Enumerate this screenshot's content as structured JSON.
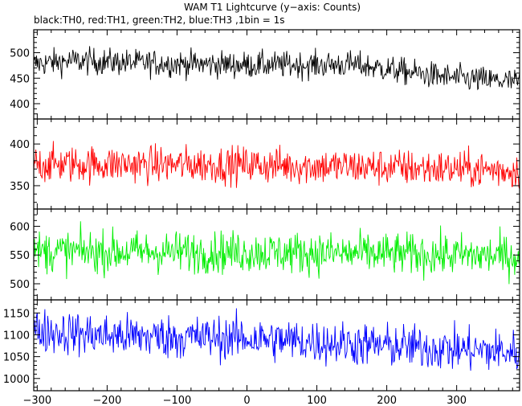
{
  "chart_data": {
    "type": "line",
    "title": "WAM T1 Lightcurve (y−axis: Counts)",
    "subtitle": "black:TH0, red:TH1, green:TH2, blue:TH3 ,1bin = 1s",
    "xlim": [
      -305,
      390
    ],
    "x_ticks": [
      -300,
      -200,
      -100,
      0,
      100,
      200,
      300
    ],
    "x_tick_labels": [
      "−300",
      "−200",
      "−100",
      "0",
      "100",
      "200",
      "300"
    ],
    "bin_seconds": 1,
    "grid": false,
    "legend": "none",
    "panels": [
      {
        "id": "TH0",
        "color": "#000000",
        "ylim": [
          370,
          545
        ],
        "y_ticks": [
          400,
          450,
          500
        ],
        "y_tick_labels": [
          "400",
          "450",
          "500"
        ],
        "trend": [
          [
            -305,
            478
          ],
          [
            -250,
            484
          ],
          [
            -150,
            480
          ],
          [
            0,
            476
          ],
          [
            100,
            476
          ],
          [
            150,
            477
          ],
          [
            200,
            468
          ],
          [
            250,
            458
          ],
          [
            300,
            450
          ],
          [
            390,
            442
          ]
        ],
        "noise_sd": 13,
        "noise_clip": [
          400,
          550
        ]
      },
      {
        "id": "TH1",
        "color": "#ff0000",
        "ylim": [
          322,
          430
        ],
        "y_ticks": [
          350,
          400
        ],
        "y_tick_labels": [
          "350",
          "400"
        ],
        "trend": [
          [
            -305,
            376
          ],
          [
            0,
            375
          ],
          [
            200,
            372
          ],
          [
            390,
            368
          ]
        ],
        "noise_sd": 11,
        "noise_clip": [
          320,
          432
        ]
      },
      {
        "id": "TH2",
        "color": "#00ee00",
        "ylim": [
          472,
          630
        ],
        "y_ticks": [
          500,
          550,
          600
        ],
        "y_tick_labels": [
          "500",
          "550",
          "600"
        ],
        "trend": [
          [
            -305,
            556
          ],
          [
            0,
            555
          ],
          [
            200,
            552
          ],
          [
            390,
            548
          ]
        ],
        "noise_sd": 18,
        "noise_clip": [
          470,
          632
        ]
      },
      {
        "id": "TH3",
        "color": "#0000ff",
        "ylim": [
          972,
          1180
        ],
        "y_ticks": [
          1000,
          1050,
          1100,
          1150
        ],
        "y_tick_labels": [
          "1000",
          "1050",
          "1100",
          "1150"
        ],
        "trend": [
          [
            -305,
            1110
          ],
          [
            -200,
            1098
          ],
          [
            0,
            1092
          ],
          [
            200,
            1075
          ],
          [
            390,
            1060
          ]
        ],
        "noise_sd": 25,
        "noise_clip": [
          968,
          1182
        ]
      }
    ]
  }
}
